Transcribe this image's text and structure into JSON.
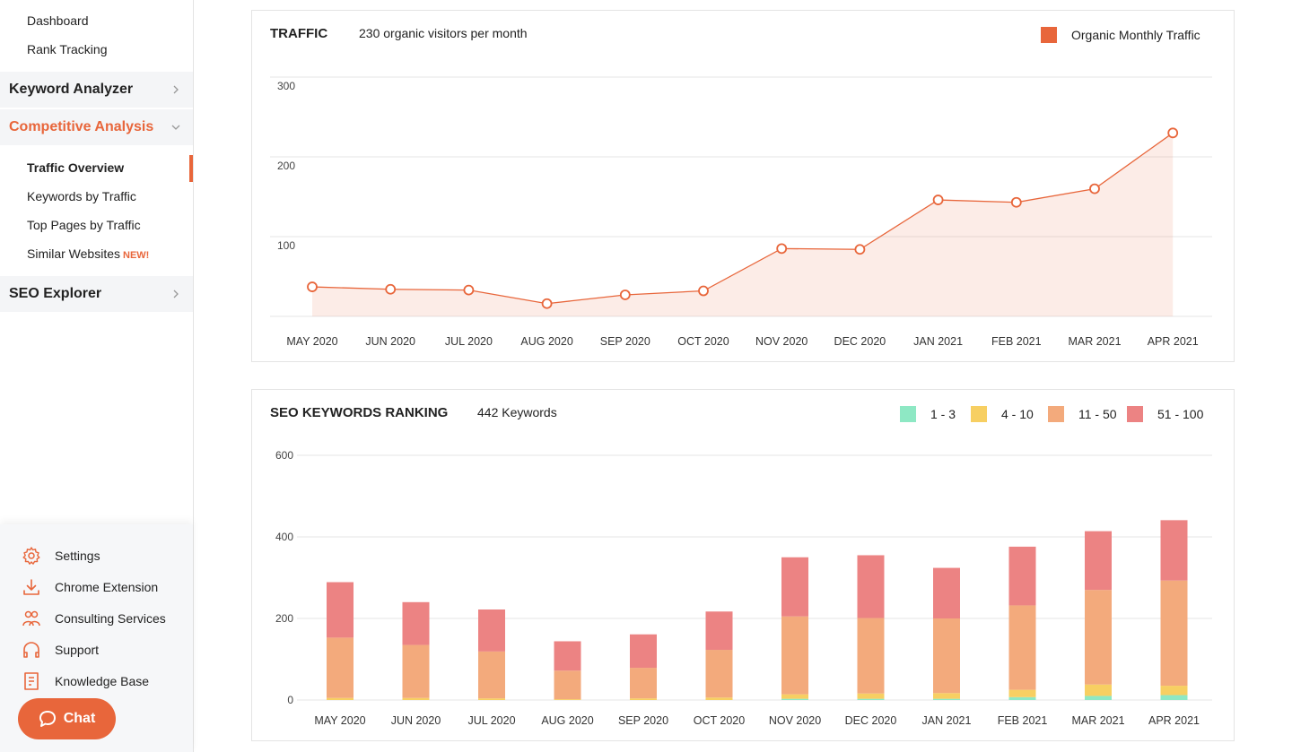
{
  "sidebar": {
    "top_items": [
      {
        "label": "Dashboard"
      },
      {
        "label": "Rank Tracking"
      }
    ],
    "sections": [
      {
        "label": "Keyword Analyzer",
        "expanded": false
      },
      {
        "label": "Competitive Analysis",
        "expanded": true
      },
      {
        "label": "SEO Explorer",
        "expanded": false
      }
    ],
    "competitive_items": [
      {
        "label": "Traffic Overview",
        "active": true
      },
      {
        "label": "Keywords by Traffic"
      },
      {
        "label": "Top Pages by Traffic"
      },
      {
        "label": "Similar Websites",
        "badge": "NEW!"
      }
    ],
    "bottom_items": [
      {
        "label": "Settings",
        "icon": "gear-icon"
      },
      {
        "label": "Chrome Extension",
        "icon": "download-icon"
      },
      {
        "label": "Consulting Services",
        "icon": "people-icon"
      },
      {
        "label": "Support",
        "icon": "headset-icon"
      },
      {
        "label": "Knowledge Base",
        "icon": "document-icon"
      }
    ],
    "chat_label": "Chat"
  },
  "colors": {
    "accent": "#e8663b",
    "rank_1_3": "#8ee8c4",
    "rank_4_10": "#f7cf62",
    "rank_11_50": "#f3aa7c",
    "rank_51_100": "#ec8383"
  },
  "traffic": {
    "title": "TRAFFIC",
    "subtitle": "230 organic visitors per month",
    "legend_label": "Organic Monthly Traffic"
  },
  "keywords": {
    "title": "SEO KEYWORDS RANKING",
    "subtitle": "442 Keywords",
    "legend": [
      "1 - 3",
      "4 - 10",
      "11 - 50",
      "51 - 100"
    ]
  },
  "chart_data": [
    {
      "type": "line",
      "title": "TRAFFIC",
      "x": [
        "MAY 2020",
        "JUN 2020",
        "JUL 2020",
        "AUG 2020",
        "SEP 2020",
        "OCT 2020",
        "NOV 2020",
        "DEC 2020",
        "JAN 2021",
        "FEB 2021",
        "MAR 2021",
        "APR 2021"
      ],
      "series": [
        {
          "name": "Organic Monthly Traffic",
          "values": [
            37,
            34,
            33,
            16,
            27,
            32,
            85,
            84,
            146,
            143,
            160,
            230
          ]
        }
      ],
      "yticks": [
        100,
        200,
        300
      ],
      "ylim": [
        0,
        300
      ],
      "grid": true,
      "legend_position": "top-right"
    },
    {
      "type": "bar",
      "stacked": true,
      "title": "SEO KEYWORDS RANKING",
      "categories": [
        "MAY 2020",
        "JUN 2020",
        "JUL 2020",
        "AUG 2020",
        "SEP 2020",
        "OCT 2020",
        "NOV 2020",
        "DEC 2020",
        "JAN 2021",
        "FEB 2021",
        "MAR 2021",
        "APR 2021"
      ],
      "series": [
        {
          "name": "1 - 3",
          "values": [
            0,
            0,
            0,
            0,
            0,
            0,
            3,
            3,
            3,
            7,
            10,
            12
          ]
        },
        {
          "name": "4 - 10",
          "values": [
            5,
            5,
            4,
            2,
            4,
            6,
            11,
            13,
            14,
            18,
            28,
            23
          ]
        },
        {
          "name": "11 - 50",
          "values": [
            148,
            130,
            115,
            70,
            75,
            117,
            191,
            185,
            183,
            207,
            232,
            258
          ]
        },
        {
          "name": "51 - 100",
          "values": [
            136,
            105,
            103,
            72,
            82,
            94,
            145,
            154,
            124,
            144,
            144,
            148
          ]
        }
      ],
      "yticks": [
        0,
        200,
        400,
        600
      ],
      "ylim": [
        0,
        600
      ],
      "grid": true,
      "legend_position": "top-right"
    }
  ]
}
